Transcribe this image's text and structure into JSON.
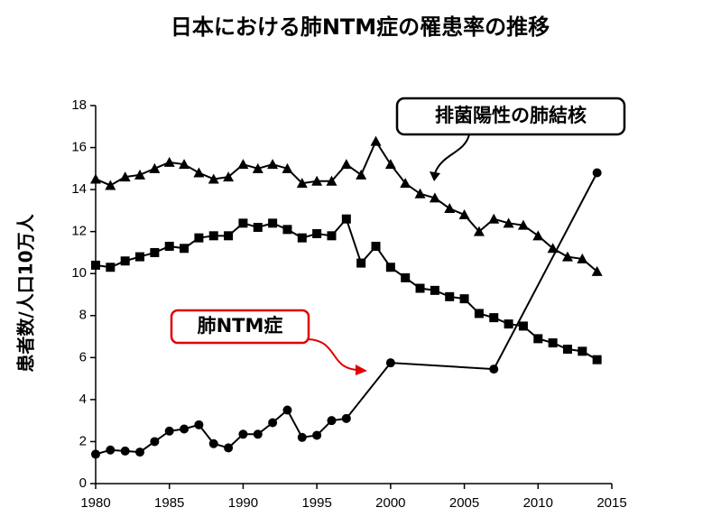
{
  "chart_data": {
    "type": "line",
    "title": "日本における肺NTM症の罹患率の推移",
    "y_label": "患者数/人口10万人",
    "xlim": [
      1980,
      2015
    ],
    "xticks": [
      1980,
      1985,
      1990,
      1995,
      2000,
      2005,
      2010,
      2015
    ],
    "ylim": [
      0,
      18
    ],
    "yticks": [
      0,
      2,
      4,
      6,
      8,
      10,
      12,
      14,
      16,
      18
    ],
    "series": [
      {
        "name": "排菌陽性の肺結核",
        "color": "#000000",
        "marker": "triangle",
        "x": [
          1980,
          1981,
          1982,
          1983,
          1984,
          1985,
          1986,
          1987,
          1988,
          1989,
          1990,
          1991,
          1992,
          1993,
          1994,
          1995,
          1996,
          1997,
          1998,
          1999,
          2000,
          2001,
          2002,
          2003,
          2004,
          2005,
          2006,
          2007,
          2008,
          2009,
          2010,
          2011,
          2012,
          2013,
          2014
        ],
        "values": [
          14.5,
          14.2,
          14.6,
          14.7,
          15.0,
          15.3,
          15.2,
          14.8,
          14.5,
          14.6,
          15.2,
          15.0,
          15.2,
          15.0,
          14.3,
          14.4,
          14.4,
          15.2,
          14.7,
          16.3,
          15.2,
          14.3,
          13.8,
          13.6,
          13.1,
          12.8,
          12.0,
          12.6,
          12.4,
          12.3,
          11.8,
          11.2,
          10.8,
          10.7,
          10.1
        ]
      },
      {
        "color": "#000000",
        "marker": "square",
        "x": [
          1980,
          1981,
          1982,
          1983,
          1984,
          1985,
          1986,
          1987,
          1988,
          1989,
          1990,
          1991,
          1992,
          1993,
          1994,
          1995,
          1996,
          1997,
          1998,
          1999,
          2000,
          2001,
          2002,
          2003,
          2004,
          2005,
          2006,
          2007,
          2008,
          2009,
          2010,
          2011,
          2012,
          2013,
          2014
        ],
        "values": [
          10.4,
          10.3,
          10.6,
          10.8,
          11.0,
          11.3,
          11.2,
          11.7,
          11.8,
          11.8,
          12.4,
          12.2,
          12.4,
          12.1,
          11.7,
          11.9,
          11.8,
          12.6,
          10.5,
          11.3,
          10.3,
          9.8,
          9.3,
          9.2,
          8.9,
          8.8,
          8.1,
          7.9,
          7.6,
          7.5,
          6.9,
          6.7,
          6.4,
          6.3,
          5.9
        ]
      },
      {
        "name": "肺NTM症",
        "color": "#000000",
        "marker": "circle",
        "label_color": "#e00000",
        "x": [
          1980,
          1981,
          1982,
          1983,
          1984,
          1985,
          1986,
          1987,
          1988,
          1989,
          1990,
          1991,
          1992,
          1993,
          1994,
          1995,
          1996,
          1997,
          2000,
          2007,
          2014
        ],
        "values": [
          1.4,
          1.6,
          1.55,
          1.5,
          2.0,
          2.5,
          2.6,
          2.8,
          1.9,
          1.7,
          2.35,
          2.35,
          2.9,
          3.5,
          2.2,
          2.3,
          3.0,
          3.1,
          5.75,
          5.45,
          14.8
        ]
      }
    ]
  }
}
